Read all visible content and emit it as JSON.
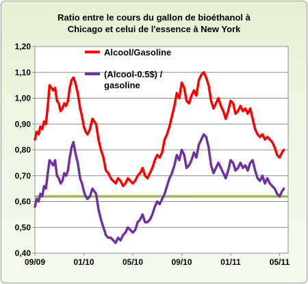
{
  "chart_data": {
    "type": "line",
    "title_line1": "Ratio entre le cours du gallon de bioéthanol  à",
    "title_line2": "Chicago  et celui  de l'essence à New York",
    "xlabel": "",
    "ylabel": "",
    "ylim": [
      0.4,
      1.2
    ],
    "yticks": [
      "0,40",
      "0,50",
      "0,60",
      "0,70",
      "0,80",
      "0,90",
      "1,00",
      "1,10",
      "1,20"
    ],
    "xticks": [
      "09/09",
      "01/10",
      "05/10",
      "09/10",
      "01/11",
      "05/11"
    ],
    "x_months": [
      0,
      4,
      8,
      12,
      16,
      20
    ],
    "grid": "horizontal",
    "legend_position": "top-center",
    "reference_line": {
      "value": 0.62,
      "color": "#9bbb59"
    },
    "series": [
      {
        "name": "Alcool/Gasoline",
        "color": "#ff0000",
        "x": [
          0,
          0.15,
          0.3,
          0.45,
          0.6,
          0.75,
          0.9,
          1.05,
          1.2,
          1.35,
          1.5,
          1.65,
          1.8,
          1.95,
          2.1,
          2.25,
          2.4,
          2.55,
          2.7,
          2.85,
          3.0,
          3.15,
          3.3,
          3.5,
          3.7,
          3.85,
          4.0,
          4.15,
          4.3,
          4.5,
          4.7,
          4.85,
          5.0,
          5.2,
          5.4,
          5.6,
          5.8,
          6.0,
          6.2,
          6.4,
          6.6,
          6.8,
          7.0,
          7.2,
          7.4,
          7.6,
          7.8,
          8.0,
          8.2,
          8.4,
          8.6,
          8.8,
          9.0,
          9.2,
          9.4,
          9.6,
          9.8,
          10.0,
          10.2,
          10.4,
          10.6,
          10.8,
          11.0,
          11.2,
          11.4,
          11.6,
          11.8,
          12.0,
          12.2,
          12.4,
          12.6,
          12.8,
          13.0,
          13.2,
          13.4,
          13.6,
          13.8,
          14.0,
          14.2,
          14.4,
          14.6,
          14.8,
          15.0,
          15.2,
          15.4,
          15.6,
          15.8,
          16.0,
          16.2,
          16.4,
          16.6,
          16.8,
          17.0,
          17.2,
          17.4,
          17.6,
          17.8,
          18.0,
          18.2,
          18.4,
          18.6,
          18.8,
          19.0,
          19.2,
          19.4,
          19.6,
          19.8,
          20.0,
          20.2,
          20.35
        ],
        "values": [
          0.84,
          0.87,
          0.86,
          0.89,
          0.88,
          0.91,
          0.9,
          0.97,
          1.05,
          1.04,
          1.03,
          1.04,
          0.99,
          0.98,
          0.95,
          0.96,
          0.98,
          0.97,
          0.99,
          1.04,
          1.07,
          1.08,
          1.06,
          1.02,
          0.96,
          0.93,
          0.89,
          0.87,
          0.86,
          0.88,
          0.92,
          0.91,
          0.9,
          0.84,
          0.8,
          0.77,
          0.72,
          0.71,
          0.69,
          0.68,
          0.67,
          0.69,
          0.68,
          0.66,
          0.67,
          0.69,
          0.68,
          0.67,
          0.68,
          0.7,
          0.71,
          0.73,
          0.7,
          0.69,
          0.71,
          0.73,
          0.76,
          0.78,
          0.77,
          0.79,
          0.84,
          0.86,
          0.89,
          0.93,
          0.97,
          1.02,
          1.0,
          1.06,
          1.04,
          0.99,
          0.98,
          1.01,
          1.03,
          1.01,
          1.07,
          1.09,
          1.1,
          1.08,
          1.05,
          0.99,
          0.96,
          0.98,
          1.0,
          0.97,
          0.95,
          0.92,
          0.95,
          0.99,
          0.98,
          0.94,
          0.95,
          0.97,
          0.95,
          0.96,
          0.94,
          0.96,
          0.92,
          0.88,
          0.86,
          0.85,
          0.86,
          0.84,
          0.85,
          0.84,
          0.83,
          0.81,
          0.78,
          0.77,
          0.79,
          0.8
        ]
      },
      {
        "name": "(Alcool-0.5$) / gasoline",
        "color": "#7030a0",
        "x": [
          0,
          0.15,
          0.3,
          0.45,
          0.6,
          0.75,
          0.9,
          1.05,
          1.2,
          1.35,
          1.5,
          1.65,
          1.8,
          1.95,
          2.1,
          2.25,
          2.4,
          2.55,
          2.7,
          2.85,
          3.0,
          3.15,
          3.3,
          3.5,
          3.7,
          3.85,
          4.0,
          4.15,
          4.3,
          4.5,
          4.7,
          4.85,
          5.0,
          5.2,
          5.4,
          5.6,
          5.8,
          6.0,
          6.2,
          6.4,
          6.6,
          6.8,
          7.0,
          7.2,
          7.4,
          7.6,
          7.8,
          8.0,
          8.2,
          8.4,
          8.6,
          8.8,
          9.0,
          9.2,
          9.4,
          9.6,
          9.8,
          10.0,
          10.2,
          10.4,
          10.6,
          10.8,
          11.0,
          11.2,
          11.4,
          11.6,
          11.8,
          12.0,
          12.2,
          12.4,
          12.6,
          12.8,
          13.0,
          13.2,
          13.4,
          13.6,
          13.8,
          14.0,
          14.2,
          14.4,
          14.6,
          14.8,
          15.0,
          15.2,
          15.4,
          15.6,
          15.8,
          16.0,
          16.2,
          16.4,
          16.6,
          16.8,
          17.0,
          17.2,
          17.4,
          17.6,
          17.8,
          18.0,
          18.2,
          18.4,
          18.6,
          18.8,
          19.0,
          19.2,
          19.4,
          19.6,
          19.8,
          20.0,
          20.2,
          20.35
        ],
        "values": [
          0.58,
          0.61,
          0.6,
          0.63,
          0.62,
          0.66,
          0.65,
          0.71,
          0.76,
          0.75,
          0.74,
          0.76,
          0.7,
          0.69,
          0.67,
          0.68,
          0.71,
          0.7,
          0.72,
          0.77,
          0.81,
          0.83,
          0.79,
          0.75,
          0.69,
          0.67,
          0.64,
          0.62,
          0.61,
          0.62,
          0.65,
          0.64,
          0.63,
          0.57,
          0.53,
          0.5,
          0.47,
          0.46,
          0.46,
          0.45,
          0.44,
          0.46,
          0.45,
          0.47,
          0.48,
          0.5,
          0.49,
          0.48,
          0.49,
          0.52,
          0.53,
          0.55,
          0.52,
          0.52,
          0.53,
          0.55,
          0.58,
          0.6,
          0.59,
          0.61,
          0.63,
          0.66,
          0.69,
          0.71,
          0.74,
          0.78,
          0.76,
          0.8,
          0.78,
          0.73,
          0.74,
          0.76,
          0.79,
          0.77,
          0.82,
          0.84,
          0.86,
          0.85,
          0.81,
          0.74,
          0.71,
          0.73,
          0.75,
          0.73,
          0.71,
          0.69,
          0.72,
          0.76,
          0.75,
          0.72,
          0.73,
          0.75,
          0.73,
          0.74,
          0.72,
          0.75,
          0.76,
          0.72,
          0.69,
          0.68,
          0.7,
          0.67,
          0.69,
          0.67,
          0.66,
          0.65,
          0.63,
          0.62,
          0.64,
          0.65
        ]
      }
    ],
    "legend": [
      {
        "label_line1": "Alcool/Gasoline",
        "label_line2": ""
      },
      {
        "label_line1": "(Alcool-0.5$) /",
        "label_line2": "gasoline"
      }
    ]
  }
}
